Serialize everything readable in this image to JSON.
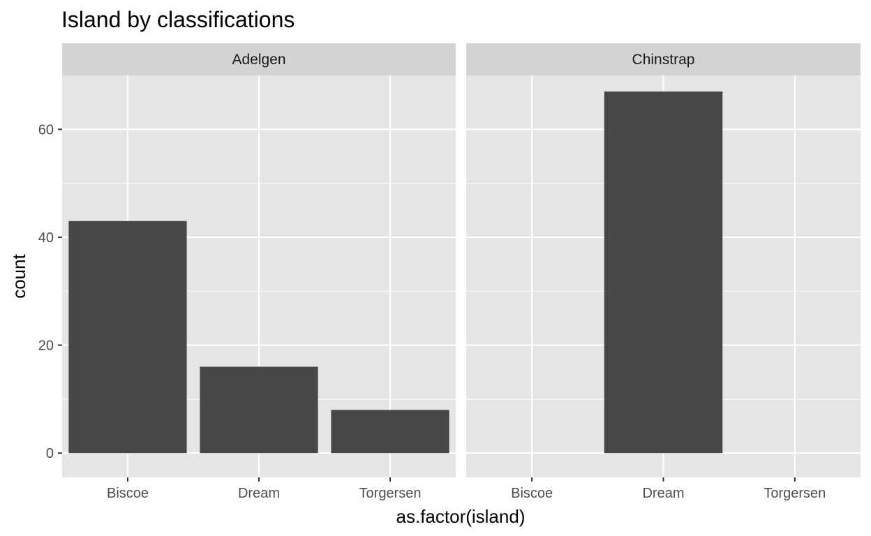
{
  "chart_data": {
    "type": "bar",
    "title": "Island by classifications",
    "xlabel": "as.factor(island)",
    "ylabel": "count",
    "ylim": [
      -4.5,
      70
    ],
    "yticks": [
      0,
      20,
      40,
      60
    ],
    "categories": [
      "Biscoe",
      "Dream",
      "Torgersen"
    ],
    "grid": true,
    "facets": [
      {
        "name": "Adelgen",
        "values": [
          43,
          16,
          8
        ]
      },
      {
        "name": "Chinstrap",
        "values": [
          0,
          67,
          0
        ]
      }
    ]
  },
  "colors": {
    "panel_background": "#e5e5e5",
    "strip_background": "#d3d3d3",
    "bar_fill": "#474747",
    "gridline": "#ffffff"
  }
}
